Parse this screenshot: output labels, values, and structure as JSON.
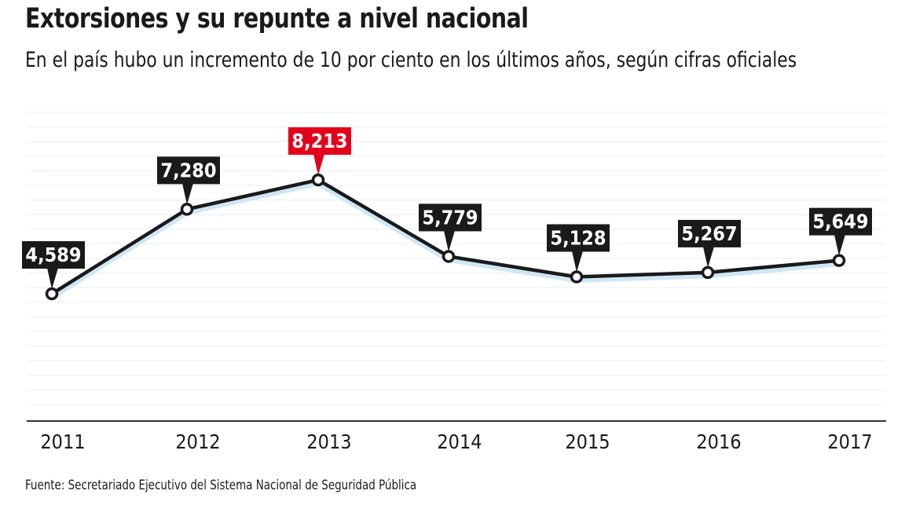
{
  "chart_data": {
    "type": "line",
    "title": "Extorsiones y su repunte a nivel nacional",
    "subtitle": "En el país hubo un incremento de 10 por ciento en los últimos años, según cifras oficiales",
    "categories": [
      "2011",
      "2012",
      "2013",
      "2014",
      "2015",
      "2016",
      "2017"
    ],
    "values": [
      4589,
      7280,
      8213,
      5779,
      5128,
      5267,
      5649
    ],
    "data_labels": [
      "4,589",
      "7,280",
      "8,213",
      "5,779",
      "5,128",
      "5,267",
      "5,649"
    ],
    "highlight_index": 2,
    "xlabel": "",
    "ylabel": "",
    "ylim": [
      540,
      10365
    ],
    "grid": true,
    "source": "Fuente: Secretariado Ejecutivo del Sistema Nacional de Seguridad Pública",
    "colors": {
      "line": "#1a1a1a",
      "halo": "#cfe6f5",
      "label_bg": "#1a1a1a",
      "highlight_bg": "#e3001b",
      "grid": "#e6f0f4"
    }
  }
}
